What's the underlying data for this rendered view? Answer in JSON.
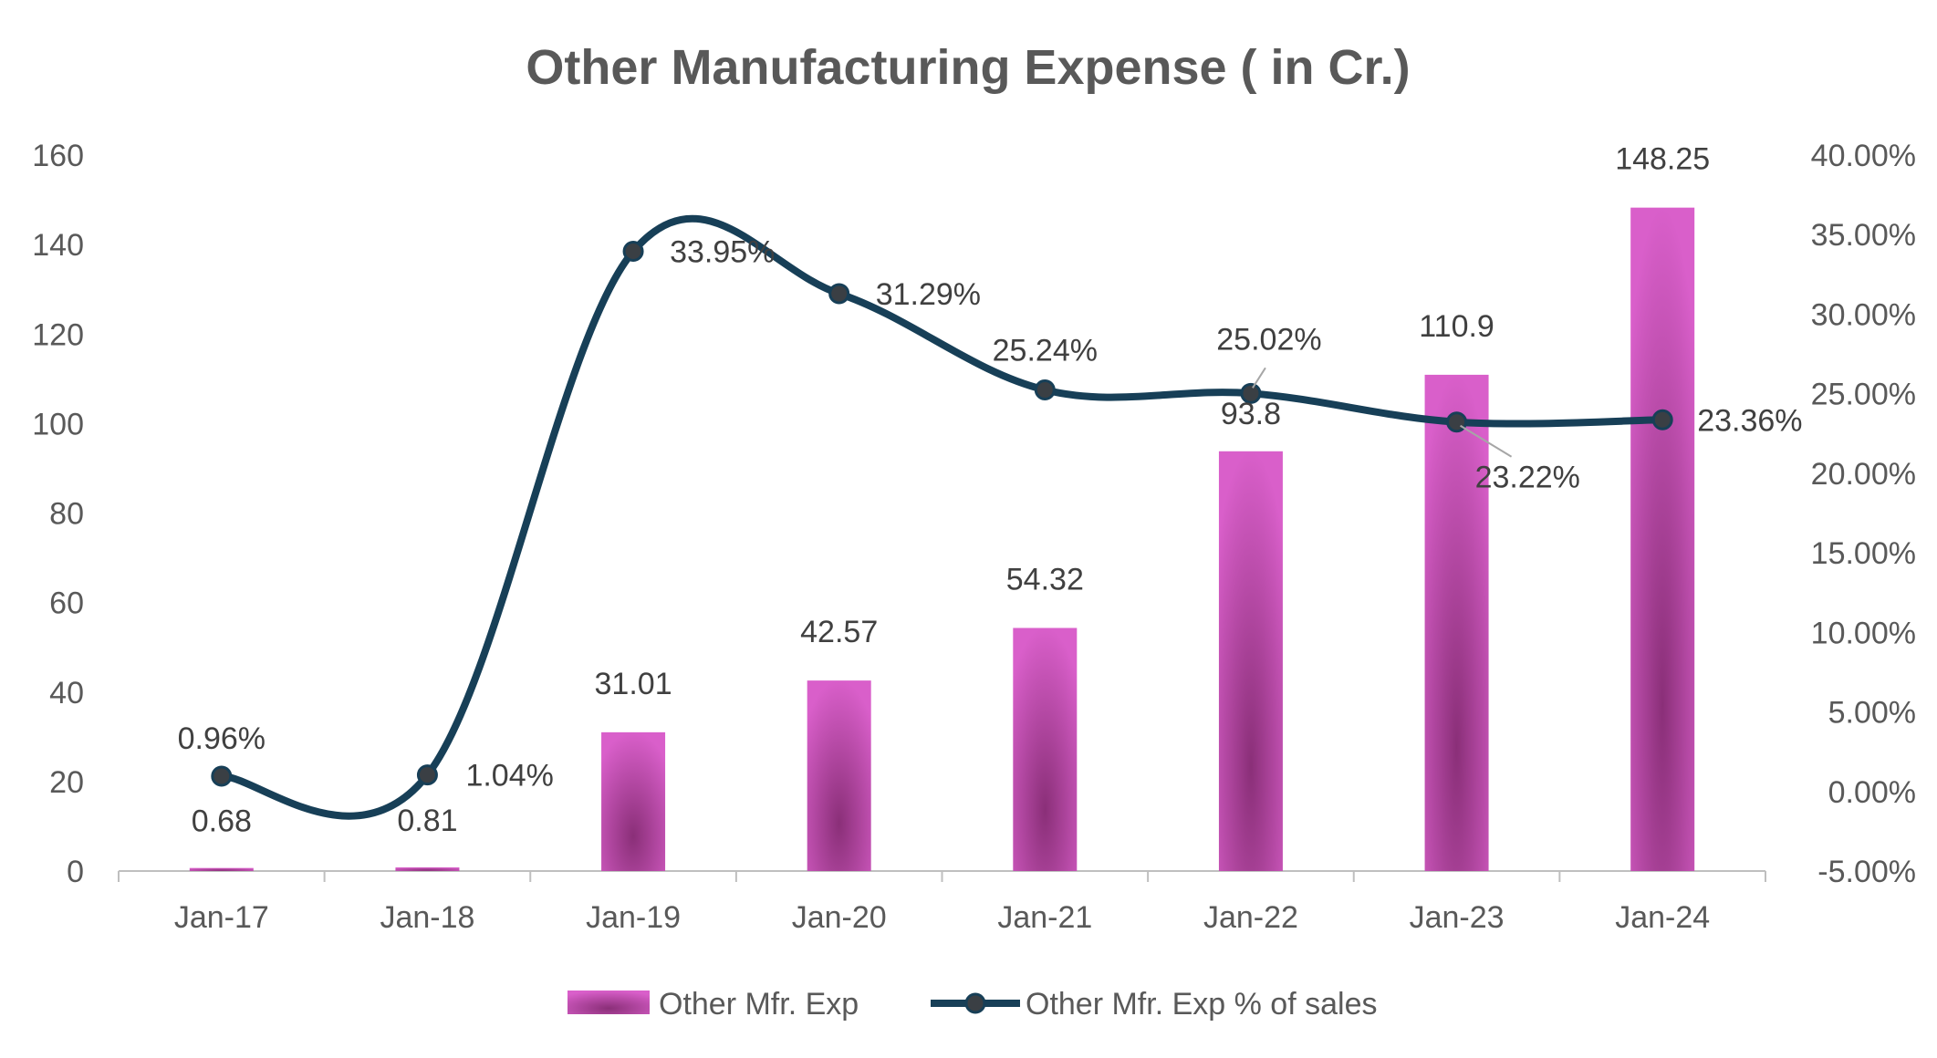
{
  "chart_data": {
    "type": "bar",
    "title": "Other Manufacturing Expense ( in Cr.)",
    "categories": [
      "Jan-17",
      "Jan-18",
      "Jan-19",
      "Jan-20",
      "Jan-21",
      "Jan-22",
      "Jan-23",
      "Jan-24"
    ],
    "series": [
      {
        "name": "Other Mfr. Exp",
        "type": "bar",
        "axis": "left",
        "values": [
          0.68,
          0.81,
          31.01,
          42.57,
          54.32,
          93.8,
          110.9,
          148.25
        ],
        "labels": [
          "0.68",
          "0.81",
          "31.01",
          "42.57",
          "54.32",
          "93.8",
          "110.9",
          "148.25"
        ],
        "color": "#d95fca",
        "center_color": "#8a2f78"
      },
      {
        "name": "Other Mfr. Exp % of sales",
        "type": "line",
        "smooth": true,
        "axis": "right",
        "values": [
          0.96,
          1.04,
          33.95,
          31.29,
          25.24,
          25.02,
          23.22,
          23.36
        ],
        "labels": [
          "0.96%",
          "1.04%",
          "33.95%",
          "31.29%",
          "25.24%",
          "25.02%",
          "23.22%",
          "23.36%"
        ],
        "color": "#173f57"
      }
    ],
    "y_left": {
      "min": 0,
      "max": 160,
      "ticks": [
        "0",
        "20",
        "40",
        "60",
        "80",
        "100",
        "120",
        "140",
        "160"
      ]
    },
    "y_right": {
      "min": -5,
      "max": 40,
      "ticks": [
        "-5.00%",
        "0.00%",
        "5.00%",
        "10.00%",
        "15.00%",
        "20.00%",
        "25.00%",
        "30.00%",
        "35.00%",
        "40.00%"
      ]
    },
    "grid": false,
    "legend_position": "bottom"
  }
}
